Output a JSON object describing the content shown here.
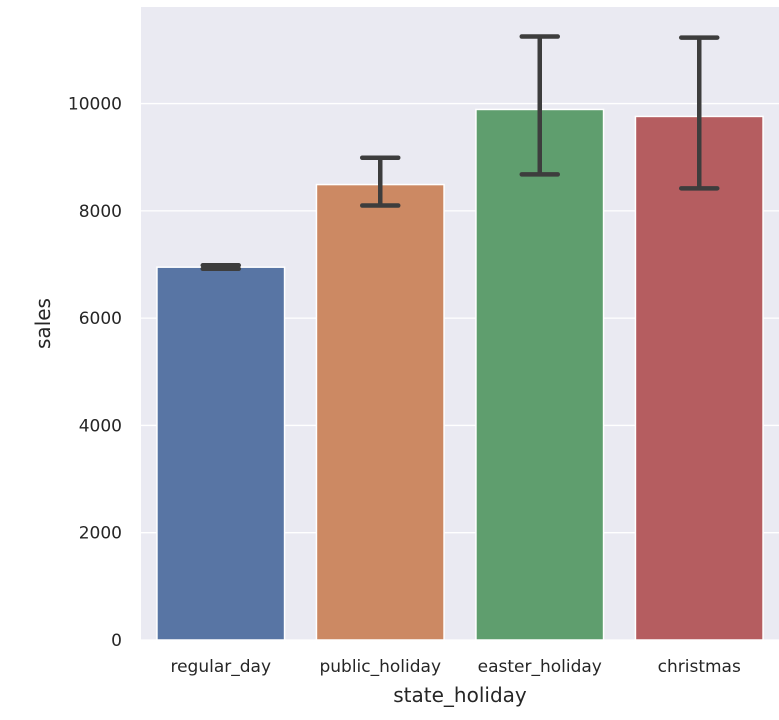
{
  "chart_data": {
    "type": "bar",
    "title": "",
    "xlabel": "state_holiday",
    "ylabel": "sales",
    "categories": [
      "regular_day",
      "public_holiday",
      "easter_holiday",
      "christmas"
    ],
    "values": [
      6950,
      8490,
      9890,
      9760
    ],
    "error_low": [
      6920,
      8100,
      8680,
      8420
    ],
    "error_high": [
      6985,
      8990,
      11250,
      11230
    ],
    "colors": [
      "#5875a4",
      "#cc8963",
      "#5f9e6e",
      "#b55d60"
    ],
    "ylim": [
      0,
      11800
    ],
    "yticks": [
      "0",
      "2000",
      "4000",
      "6000",
      "8000",
      "10000"
    ],
    "grid": true,
    "background": "#eaeaf2",
    "grid_color": "#ffffff",
    "errorbar_color": "#3d3d3d"
  }
}
